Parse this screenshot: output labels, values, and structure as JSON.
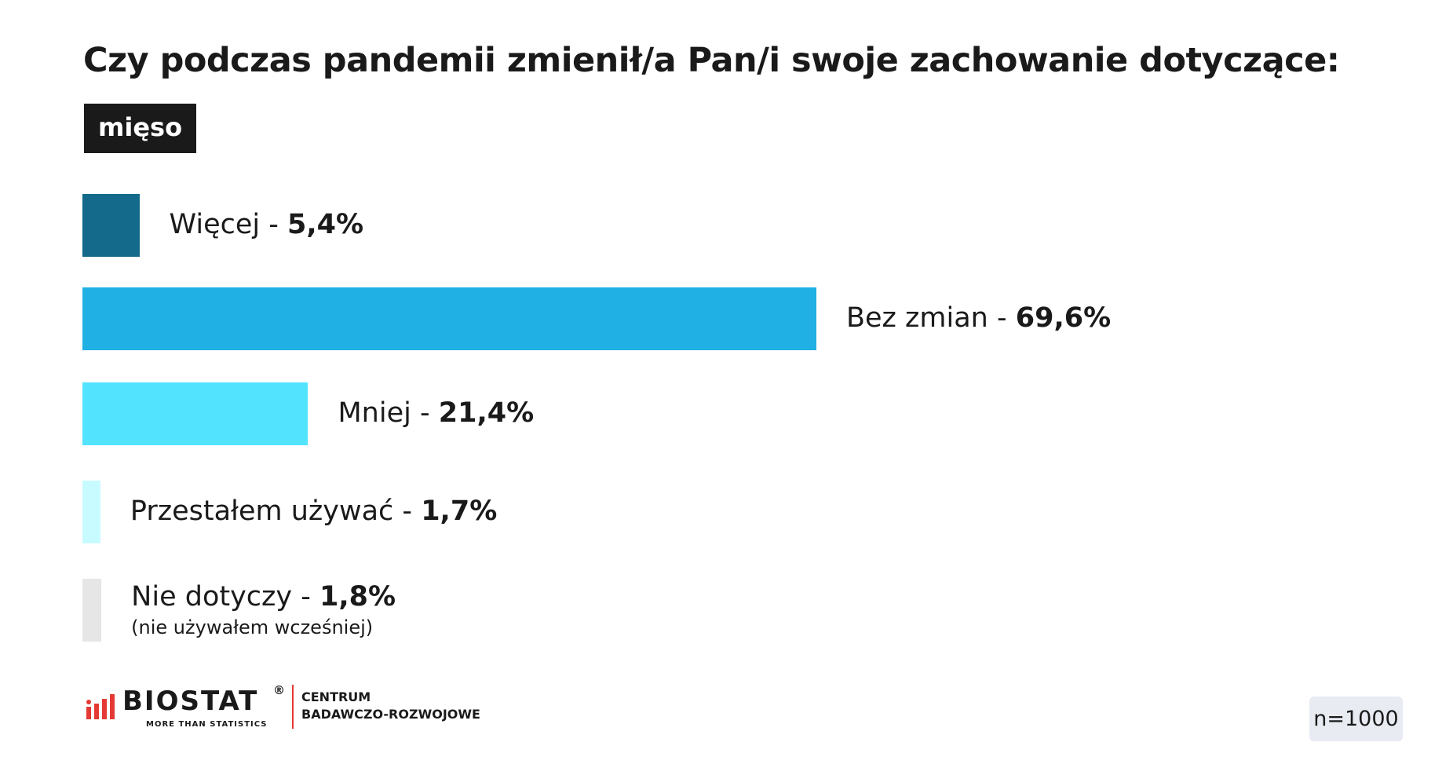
{
  "title": "Czy podczas pandemii zmienił/a Pan/i swoje zachowanie dotyczące:",
  "category_badge": "mięso",
  "chart_data": {
    "type": "bar",
    "orientation": "horizontal",
    "title": "Czy podczas pandemii zmienił/a Pan/i swoje zachowanie dotyczące:",
    "categories": [
      "Więcej",
      "Bez zmian",
      "Mniej",
      "Przestałem używać",
      "Nie dotyczy"
    ],
    "values": [
      5.4,
      69.6,
      21.4,
      1.7,
      1.8
    ],
    "value_labels": [
      "5,4%",
      "69,6%",
      "21,4%",
      "1,7%",
      "1,8%"
    ],
    "sublabels": [
      "",
      "",
      "",
      "",
      "(nie używałem wcześniej)"
    ],
    "colors": [
      "#136a8a",
      "#20b0e3",
      "#52e4ff",
      "#c8fbff",
      "#e6e6e6"
    ],
    "separator": " - ",
    "unit": "%",
    "grid": false,
    "legend": "none"
  },
  "footer": {
    "logo_name": "BIOSTAT",
    "logo_registered": "®",
    "logo_tagline": "MORE THAN STATISTICS",
    "logo_line1": "CENTRUM",
    "logo_line2": "BADAWCZO-ROZWOJOWE",
    "logo_accent": "#e53935",
    "sample": "n=1000"
  }
}
